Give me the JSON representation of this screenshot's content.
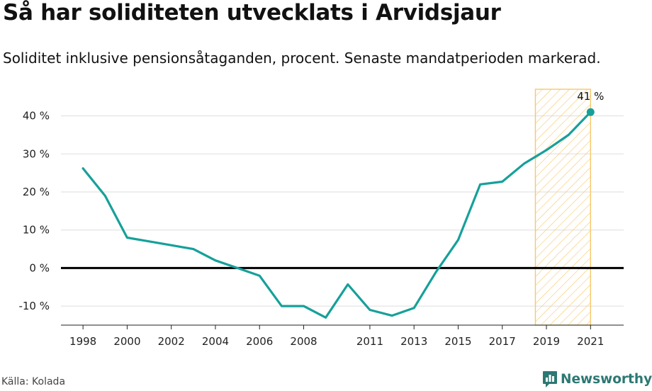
{
  "title": "Så har soliditeten utvecklats i Arvidsjaur",
  "subtitle": "Soliditet inklusive pensionsåtaganden, procent. Senaste mandatperioden markerad.",
  "source": "Källa: Kolada",
  "brand": {
    "name": "Newsworthy",
    "color": "#2c7873",
    "icon": "bar-chart-icon"
  },
  "chart_data": {
    "type": "line",
    "x": [
      1998,
      1999,
      2000,
      2001,
      2002,
      2003,
      2004,
      2005,
      2006,
      2007,
      2008,
      2009,
      2010,
      2011,
      2012,
      2013,
      2014,
      2015,
      2016,
      2017,
      2018,
      2019,
      2020,
      2021
    ],
    "series": [
      {
        "values": [
          26.2,
          19,
          8,
          7,
          6,
          5,
          2,
          0,
          -2,
          -10,
          -10,
          -13,
          -4.3,
          -11,
          -12.5,
          -10.5,
          -1,
          7.4,
          22,
          22.7,
          27.5,
          31,
          35,
          41
        ]
      }
    ],
    "xticks": [
      1998,
      2000,
      2002,
      2004,
      2006,
      2008,
      2011,
      2013,
      2015,
      2017,
      2019,
      2021
    ],
    "xtick_labels": [
      "1998",
      "2000",
      "2002",
      "2004",
      "2006",
      "2008",
      "2011",
      "2013",
      "2015",
      "2017",
      "2019",
      "2021"
    ],
    "yticks": [
      -10,
      0,
      10,
      20,
      30,
      40
    ],
    "ytick_labels": [
      "-10 %",
      "0 %",
      "10 %",
      "20 %",
      "30 %",
      "40 %"
    ],
    "xlim": [
      1997,
      2022.5
    ],
    "ylim": [
      -15,
      47
    ],
    "highlight_range": [
      2018.5,
      2021
    ],
    "end_label": "41 %",
    "grid": true,
    "colors": {
      "line": "#16a09a",
      "highlight": "#f6c86a",
      "zero_line": "#000000",
      "grid": "#dddddd"
    }
  }
}
